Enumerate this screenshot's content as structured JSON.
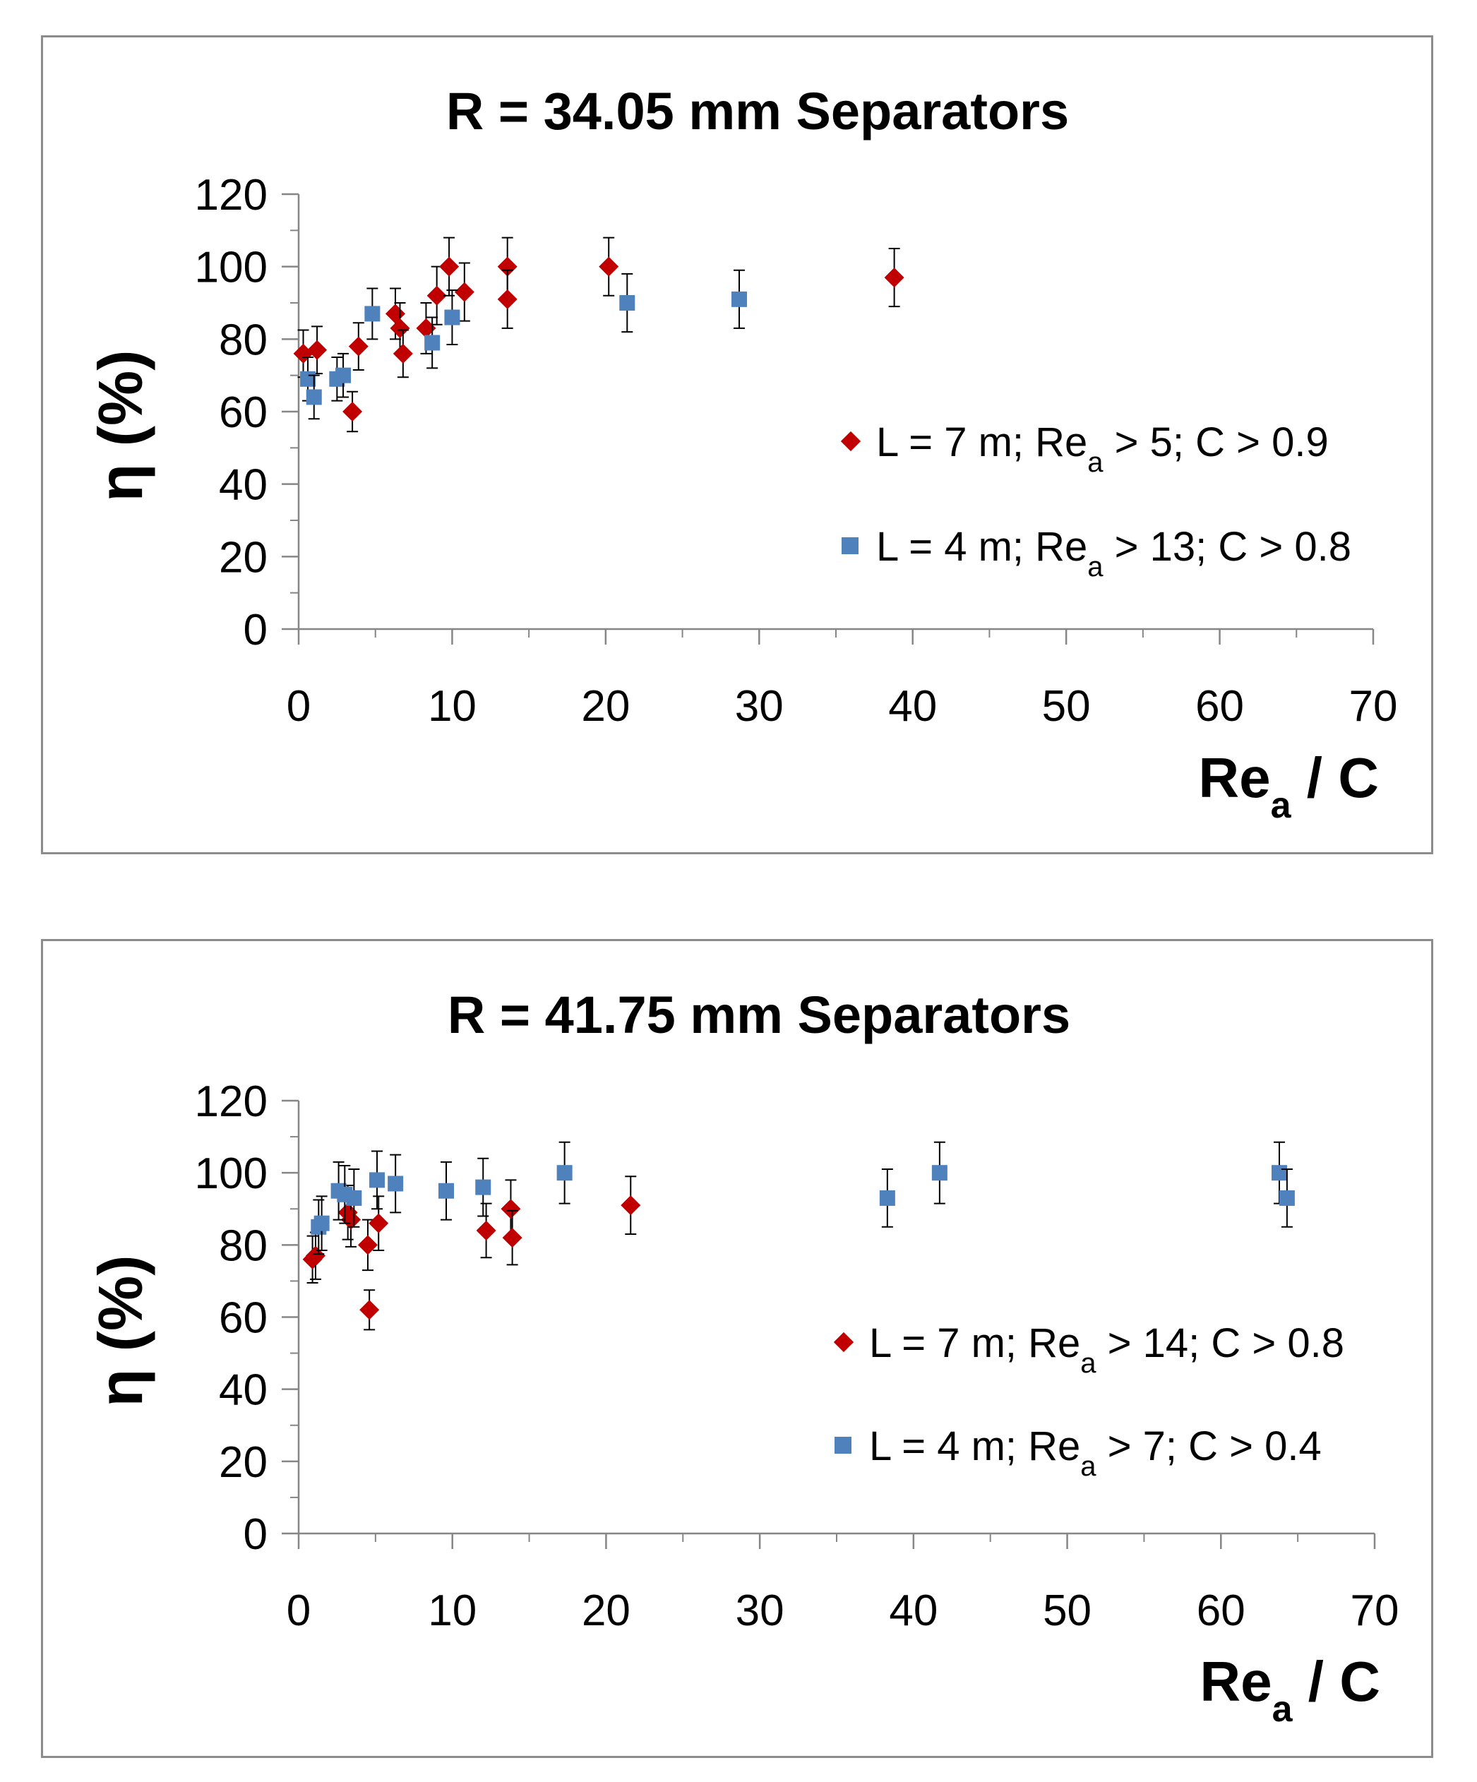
{
  "chart_data": [
    {
      "type": "scatter",
      "title": "R = 34.05 mm Separators",
      "xlabel": {
        "main": "Re",
        "sub": "a",
        "rest": " / C"
      },
      "ylabel": "η (%)",
      "xlim": [
        0,
        70
      ],
      "ylim": [
        0,
        120
      ],
      "xticks": [
        "0",
        "10",
        "20",
        "30",
        "40",
        "50",
        "60",
        "70"
      ],
      "yticks": [
        "0",
        "20",
        "40",
        "60",
        "80",
        "100",
        "120"
      ],
      "grid": false,
      "legend_position": "right-middle",
      "series": [
        {
          "name": "L = 7 m; Re_a > 5; C > 0.9",
          "legend": {
            "pre": "L = 7 m; Re",
            "sub": "a",
            "post": " > 5; C > 0.9"
          },
          "marker": "diamond",
          "color": "#c00000",
          "points": [
            {
              "x": 0.3,
              "y": 76,
              "err": 6.5
            },
            {
              "x": 1.2,
              "y": 77,
              "err": 6.5
            },
            {
              "x": 3.5,
              "y": 60,
              "err": 5.5
            },
            {
              "x": 3.9,
              "y": 78,
              "err": 6.5
            },
            {
              "x": 6.3,
              "y": 87,
              "err": 7
            },
            {
              "x": 6.6,
              "y": 83,
              "err": 7
            },
            {
              "x": 6.8,
              "y": 76,
              "err": 6.5
            },
            {
              "x": 8.3,
              "y": 83,
              "err": 7
            },
            {
              "x": 9.0,
              "y": 92,
              "err": 8
            },
            {
              "x": 9.8,
              "y": 100,
              "err": 8
            },
            {
              "x": 10.8,
              "y": 93,
              "err": 8
            },
            {
              "x": 13.6,
              "y": 100,
              "err": 8
            },
            {
              "x": 13.6,
              "y": 91,
              "err": 8
            },
            {
              "x": 20.2,
              "y": 100,
              "err": 8
            },
            {
              "x": 38.8,
              "y": 97,
              "err": 8
            }
          ]
        },
        {
          "name": "L = 4 m; Re_a > 13; C > 0.8",
          "legend": {
            "pre": "L = 4 m; Re",
            "sub": "a",
            "post": " > 13;  C > 0.8"
          },
          "marker": "square",
          "color": "#4f81bd",
          "points": [
            {
              "x": 0.6,
              "y": 69,
              "err": 6
            },
            {
              "x": 1.0,
              "y": 64,
              "err": 6
            },
            {
              "x": 2.5,
              "y": 69,
              "err": 6
            },
            {
              "x": 2.9,
              "y": 70,
              "err": 6
            },
            {
              "x": 4.8,
              "y": 87,
              "err": 7
            },
            {
              "x": 8.7,
              "y": 79,
              "err": 7
            },
            {
              "x": 10.0,
              "y": 86,
              "err": 7.5
            },
            {
              "x": 21.4,
              "y": 90,
              "err": 8
            },
            {
              "x": 28.7,
              "y": 91,
              "err": 8
            }
          ]
        }
      ]
    },
    {
      "type": "scatter",
      "title": "R = 41.75 mm Separators",
      "xlabel": {
        "main": "Re",
        "sub": "a",
        "rest": " / C"
      },
      "ylabel": "η (%)",
      "xlim": [
        0,
        70
      ],
      "ylim": [
        0,
        120
      ],
      "xticks": [
        "0",
        "10",
        "20",
        "30",
        "40",
        "50",
        "60",
        "70"
      ],
      "yticks": [
        "0",
        "20",
        "40",
        "60",
        "80",
        "100",
        "120"
      ],
      "grid": false,
      "legend_position": "right-middle",
      "series": [
        {
          "name": "L = 7 m; Re_a > 14; C > 0.8",
          "legend": {
            "pre": "L = 7 m; Re",
            "sub": "a",
            "post": " > 14; C > 0.8"
          },
          "marker": "diamond",
          "color": "#c00000",
          "points": [
            {
              "x": 0.9,
              "y": 76,
              "err": 6.5
            },
            {
              "x": 1.1,
              "y": 77,
              "err": 6.5
            },
            {
              "x": 3.2,
              "y": 89,
              "err": 7.5
            },
            {
              "x": 3.4,
              "y": 87,
              "err": 7.5
            },
            {
              "x": 4.5,
              "y": 80,
              "err": 7
            },
            {
              "x": 4.6,
              "y": 62,
              "err": 5.5
            },
            {
              "x": 5.2,
              "y": 86,
              "err": 7.5
            },
            {
              "x": 12.2,
              "y": 84,
              "err": 7.5
            },
            {
              "x": 13.8,
              "y": 90,
              "err": 8
            },
            {
              "x": 13.9,
              "y": 82,
              "err": 7.5
            },
            {
              "x": 21.6,
              "y": 91,
              "err": 8
            }
          ]
        },
        {
          "name": "L = 4 m; Re_a > 7; C > 0.4",
          "legend": {
            "pre": "L = 4 m; Re",
            "sub": "a",
            "post": " > 7; C > 0.4"
          },
          "marker": "square",
          "color": "#4f81bd",
          "points": [
            {
              "x": 1.3,
              "y": 85,
              "err": 7.5
            },
            {
              "x": 1.5,
              "y": 86,
              "err": 7.5
            },
            {
              "x": 2.6,
              "y": 95,
              "err": 8
            },
            {
              "x": 3.0,
              "y": 94,
              "err": 8
            },
            {
              "x": 3.6,
              "y": 93,
              "err": 8
            },
            {
              "x": 5.1,
              "y": 98,
              "err": 8
            },
            {
              "x": 6.3,
              "y": 97,
              "err": 8
            },
            {
              "x": 9.6,
              "y": 95,
              "err": 8
            },
            {
              "x": 12.0,
              "y": 96,
              "err": 8
            },
            {
              "x": 17.3,
              "y": 100,
              "err": 8.5
            },
            {
              "x": 38.3,
              "y": 93,
              "err": 8
            },
            {
              "x": 41.7,
              "y": 100,
              "err": 8.5
            },
            {
              "x": 63.8,
              "y": 100,
              "err": 8.5
            },
            {
              "x": 64.3,
              "y": 93,
              "err": 8
            }
          ]
        }
      ]
    }
  ]
}
